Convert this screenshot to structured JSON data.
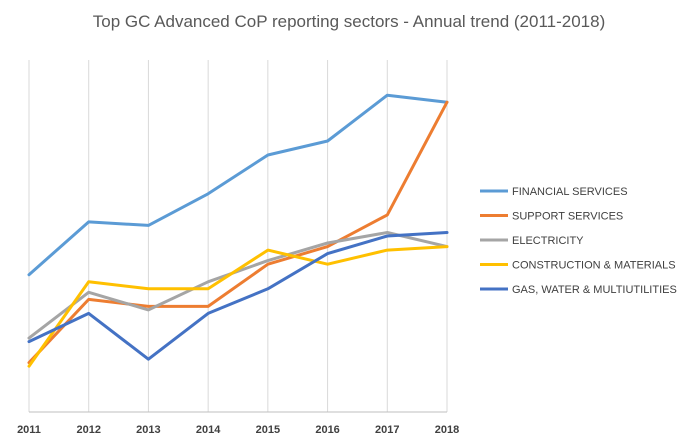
{
  "chart_data": {
    "type": "line",
    "title": "Top GC Advanced CoP reporting sectors - Annual trend (2011-2018)",
    "xlabel": "",
    "ylabel": "",
    "categories": [
      "2011",
      "2012",
      "2013",
      "2014",
      "2015",
      "2016",
      "2017",
      "2018"
    ],
    "ylim": [
      0,
      100
    ],
    "grid": "vertical",
    "legend_position": "right",
    "series": [
      {
        "name": "FINANCIAL SERVICES",
        "color": "#5B9BD5",
        "values": [
          39,
          54,
          53,
          62,
          73,
          77,
          90,
          88
        ]
      },
      {
        "name": "SUPPORT SERVICES",
        "color": "#ED7D31",
        "values": [
          14,
          32,
          30,
          30,
          42,
          47,
          56,
          88
        ]
      },
      {
        "name": "ELECTRICITY",
        "color": "#A5A5A5",
        "values": [
          21,
          34,
          29,
          37,
          43,
          48,
          51,
          47
        ]
      },
      {
        "name": "CONSTRUCTION & MATERIALS",
        "color": "#FFC000",
        "values": [
          13,
          37,
          35,
          35,
          46,
          42,
          46,
          47
        ]
      },
      {
        "name": "GAS, WATER & MULTIUTILITIES",
        "color": "#4472C4",
        "values": [
          20,
          28,
          15,
          28,
          35,
          45,
          50,
          51
        ]
      }
    ]
  }
}
